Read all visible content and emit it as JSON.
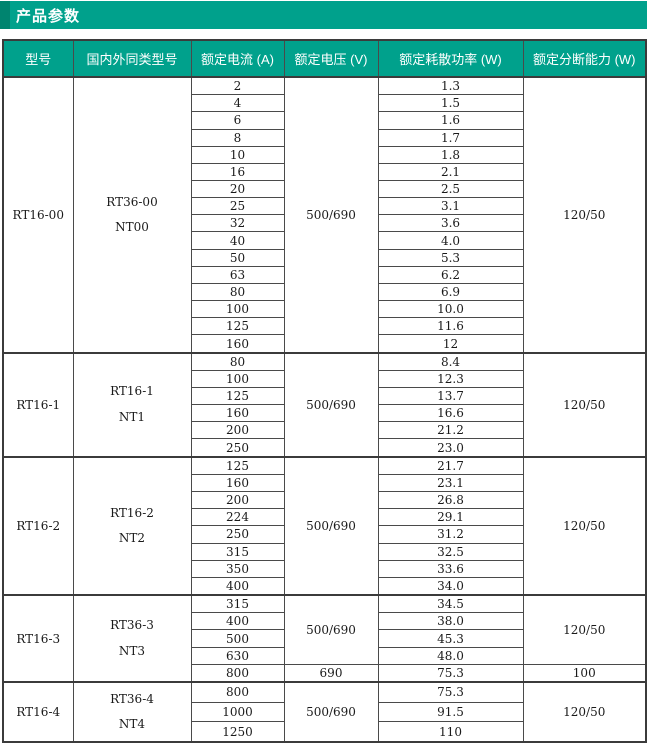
{
  "page": {
    "title": "产品参数"
  },
  "colors": {
    "accent_teal": "#00a18c",
    "accent_teal_dark": "#00846f",
    "table_border": "#4a4a4a",
    "header_text": "#ffffff",
    "body_text": "#1a1a1a"
  },
  "table": {
    "columns": [
      "型号",
      "国内外同类型号",
      "额定电流 (A)",
      "额定电压 (V)",
      "额定耗散功率 (W)",
      "额定分断能力 (W)"
    ],
    "sections": [
      {
        "model": "RT16-00",
        "equivalent": [
          "RT36-00",
          "NT00"
        ],
        "blocks": [
          {
            "voltage": "500/690",
            "breaking": "120/50",
            "rows": [
              {
                "current": "2",
                "power": "1.3"
              },
              {
                "current": "4",
                "power": "1.5"
              },
              {
                "current": "6",
                "power": "1.6"
              },
              {
                "current": "8",
                "power": "1.7"
              },
              {
                "current": "10",
                "power": "1.8"
              },
              {
                "current": "16",
                "power": "2.1"
              },
              {
                "current": "20",
                "power": "2.5"
              },
              {
                "current": "25",
                "power": "3.1"
              },
              {
                "current": "32",
                "power": "3.6"
              },
              {
                "current": "40",
                "power": "4.0"
              },
              {
                "current": "50",
                "power": "5.3"
              },
              {
                "current": "63",
                "power": "6.2"
              },
              {
                "current": "80",
                "power": "6.9"
              },
              {
                "current": "100",
                "power": "10.0"
              },
              {
                "current": "125",
                "power": "11.6"
              },
              {
                "current": "160",
                "power": "12"
              }
            ]
          }
        ]
      },
      {
        "model": "RT16-1",
        "equivalent": [
          "RT16-1",
          "NT1"
        ],
        "blocks": [
          {
            "voltage": "500/690",
            "breaking": "120/50",
            "rows": [
              {
                "current": "80",
                "power": "8.4"
              },
              {
                "current": "100",
                "power": "12.3"
              },
              {
                "current": "125",
                "power": "13.7"
              },
              {
                "current": "160",
                "power": "16.6"
              },
              {
                "current": "200",
                "power": "21.2"
              },
              {
                "current": "250",
                "power": "23.0"
              }
            ]
          }
        ]
      },
      {
        "model": "RT16-2",
        "equivalent": [
          "RT16-2",
          "NT2"
        ],
        "blocks": [
          {
            "voltage": "500/690",
            "breaking": "120/50",
            "rows": [
              {
                "current": "125",
                "power": "21.7"
              },
              {
                "current": "160",
                "power": "23.1"
              },
              {
                "current": "200",
                "power": "26.8"
              },
              {
                "current": "224",
                "power": "29.1"
              },
              {
                "current": "250",
                "power": "31.2"
              },
              {
                "current": "315",
                "power": "32.5"
              },
              {
                "current": "350",
                "power": "33.6"
              },
              {
                "current": "400",
                "power": "34.0"
              }
            ]
          }
        ]
      },
      {
        "model": "RT16-3",
        "equivalent": [
          "RT36-3",
          "NT3"
        ],
        "blocks": [
          {
            "voltage": "500/690",
            "breaking": "120/50",
            "rows": [
              {
                "current": "315",
                "power": "34.5"
              },
              {
                "current": "400",
                "power": "38.0"
              },
              {
                "current": "500",
                "power": "45.3"
              },
              {
                "current": "630",
                "power": "48.0"
              }
            ]
          },
          {
            "voltage": "690",
            "breaking": "100",
            "rows": [
              {
                "current": "800",
                "power": "75.3"
              }
            ]
          }
        ]
      },
      {
        "model": "RT16-4",
        "equivalent": [
          "RT36-4",
          "NT4"
        ],
        "blocks": [
          {
            "voltage": "500/690",
            "breaking": "120/50",
            "rows": [
              {
                "current": "800",
                "power": "75.3"
              },
              {
                "current": "1000",
                "power": "91.5"
              },
              {
                "current": "1250",
                "power": "110"
              }
            ]
          }
        ]
      }
    ]
  }
}
